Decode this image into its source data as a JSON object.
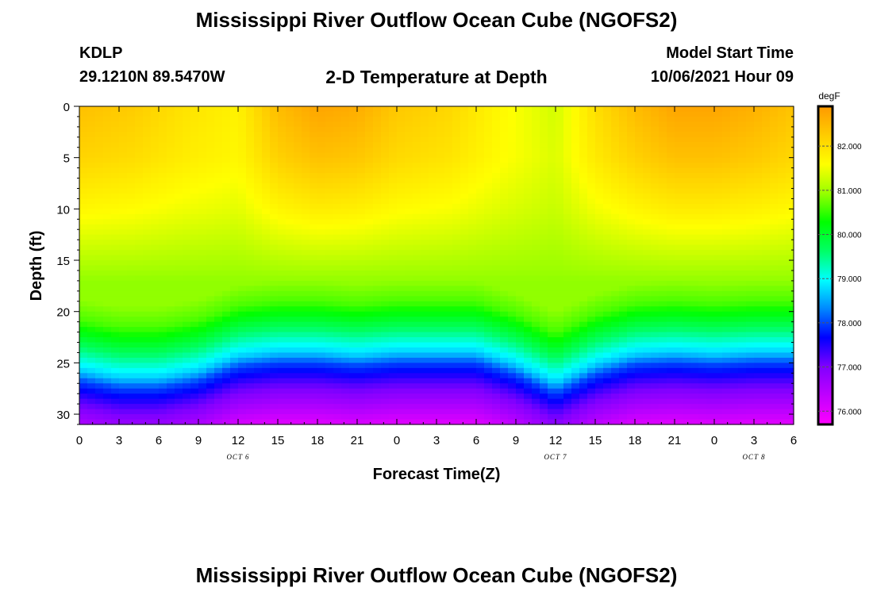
{
  "header": {
    "title": "Mississippi River Outflow Ocean Cube (NGOFS2)",
    "station": "KDLP",
    "coords": "29.1210N  89.5470W",
    "subtitle": "2-D Temperature at Depth",
    "model_start_label": "Model Start Time",
    "model_start_value": "10/06/2021 Hour 09"
  },
  "footer": {
    "title": "Mississippi River Outflow Ocean Cube (NGOFS2)"
  },
  "colors": {
    "palette": [
      "#ff00ff",
      "#c000ff",
      "#8000ff",
      "#0000ff",
      "#0088ff",
      "#00ffff",
      "#00ff66",
      "#00ff00",
      "#99ff00",
      "#ffff00",
      "#ffcc00",
      "#ff9900"
    ]
  },
  "chart_data": {
    "type": "heatmap",
    "title": "2-D Temperature at Depth",
    "xlabel": "Forecast Time(Z)",
    "ylabel": "Depth (ft)",
    "x_unit": "hours from 00Z Oct 6",
    "xlim": [
      0,
      54
    ],
    "ylim": [
      0,
      31
    ],
    "y_inverted": true,
    "x_ticks": [
      0,
      3,
      6,
      9,
      12,
      15,
      18,
      21,
      24,
      27,
      30,
      33,
      36,
      39,
      42,
      45,
      48,
      51,
      54
    ],
    "x_tick_labels": [
      "0",
      "3",
      "6",
      "9",
      "12",
      "15",
      "18",
      "21",
      "0",
      "3",
      "6",
      "9",
      "12",
      "15",
      "18",
      "21",
      "0",
      "3",
      "6"
    ],
    "y_ticks": [
      0,
      5,
      10,
      15,
      20,
      25,
      30
    ],
    "y_tick_labels": [
      "0",
      "5",
      "10",
      "15",
      "20",
      "25",
      "30"
    ],
    "date_labels": [
      {
        "x": 12,
        "text": "OCT 6"
      },
      {
        "x": 36,
        "text": "OCT 7"
      },
      {
        "x": 51,
        "text": "OCT 8"
      }
    ],
    "colorbar": {
      "unit": "degF",
      "range": [
        75.7,
        82.9
      ],
      "ticks": [
        76,
        77,
        78,
        79,
        80,
        81,
        82
      ],
      "tick_labels": [
        "76.000",
        "77.000",
        "78.000",
        "79.000",
        "80.000",
        "81.000",
        "82.000"
      ]
    },
    "depth_profile_degF": {
      "depths": [
        0,
        5,
        10,
        15,
        17,
        19,
        20.5,
        22,
        23,
        24,
        25,
        27,
        29,
        31
      ],
      "values": [
        82.2,
        82.0,
        81.6,
        81.1,
        80.9,
        80.6,
        80.1,
        79.5,
        79.1,
        78.7,
        78.0,
        77.2,
        76.6,
        76.0
      ]
    },
    "surface_anomaly_degF": {
      "hours": [
        0,
        4,
        8,
        12,
        15,
        18,
        21,
        24,
        28,
        32,
        36,
        39,
        42,
        45,
        48,
        51,
        54
      ],
      "values": [
        0.2,
        0.05,
        -0.25,
        -0.45,
        0.25,
        0.55,
        0.45,
        0.1,
        -0.1,
        -0.55,
        -0.9,
        -0.2,
        0.25,
        0.55,
        0.55,
        0.4,
        0.15
      ]
    },
    "thermocline_shift_ft": {
      "hours": [
        0,
        3,
        6,
        9,
        12,
        15,
        18,
        21,
        24,
        27,
        30,
        33,
        36,
        39,
        42,
        45,
        48,
        51,
        54
      ],
      "values": [
        1.8,
        2.5,
        2.5,
        1.8,
        0.4,
        0,
        0,
        0.3,
        0,
        0,
        0,
        1.2,
        3.0,
        1.2,
        0.2,
        0,
        0.2,
        0,
        0
      ]
    }
  }
}
